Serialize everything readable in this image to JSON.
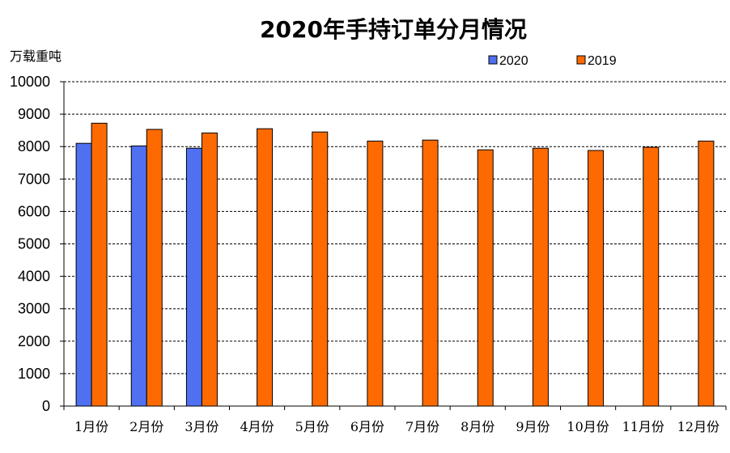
{
  "chart_data": {
    "type": "bar",
    "title": "2020年手持订单分月情况",
    "ylabel": "万载重吨",
    "xlabel": "",
    "categories": [
      "1月份",
      "2月份",
      "3月份",
      "4月份",
      "5月份",
      "6月份",
      "7月份",
      "8月份",
      "9月份",
      "10月份",
      "11月份",
      "12月份"
    ],
    "series": [
      {
        "name": "2020",
        "color": "#4f70f0",
        "values": [
          8100,
          8020,
          7950,
          null,
          null,
          null,
          null,
          null,
          null,
          null,
          null,
          null
        ]
      },
      {
        "name": "2019",
        "color": "#ff6a00",
        "values": [
          8720,
          8530,
          8420,
          8550,
          8450,
          8170,
          8200,
          7900,
          7950,
          7880,
          7980,
          8170
        ]
      }
    ],
    "ylim": [
      0,
      10000
    ],
    "yticks": [
      "0",
      "1000",
      "2000",
      "3000",
      "4000",
      "5000",
      "6000",
      "7000",
      "8000",
      "9000",
      "10000"
    ],
    "grid": true,
    "legend_position": "top-right"
  }
}
